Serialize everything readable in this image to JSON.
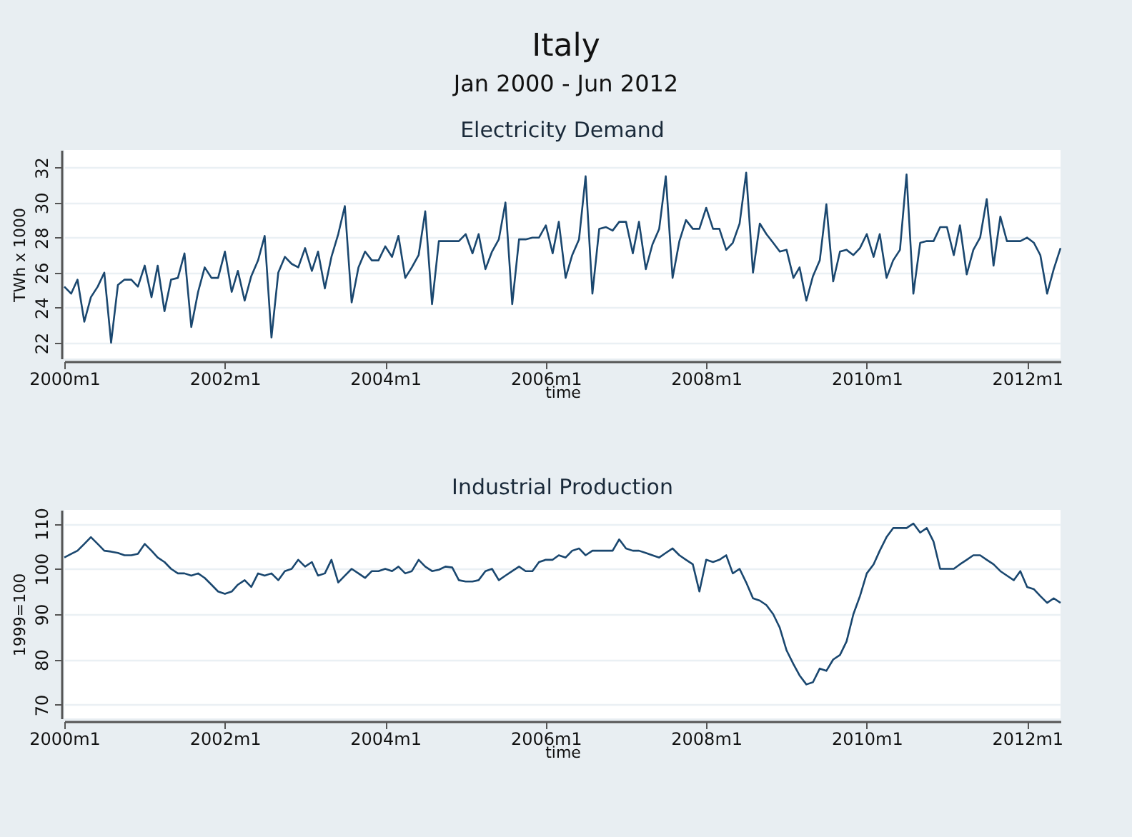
{
  "chart_data": [
    {
      "type": "other",
      "title": "Italy",
      "subtitle": "Jan 2000 - Jun 2012"
    },
    {
      "type": "line",
      "title": "Electricity Demand",
      "xlabel": "time",
      "x": [
        "2000-01",
        "2000-02",
        "2000-03",
        "2000-04",
        "2000-05",
        "2000-06",
        "2000-07",
        "2000-08",
        "2000-09",
        "2000-10",
        "2000-11",
        "2000-12",
        "2001-01",
        "2001-02",
        "2001-03",
        "2001-04",
        "2001-05",
        "2001-06",
        "2001-07",
        "2001-08",
        "2001-09",
        "2001-10",
        "2001-11",
        "2001-12",
        "2002-01",
        "2002-02",
        "2002-03",
        "2002-04",
        "2002-05",
        "2002-06",
        "2002-07",
        "2002-08",
        "2002-09",
        "2002-10",
        "2002-11",
        "2002-12",
        "2003-01",
        "2003-02",
        "2003-03",
        "2003-04",
        "2003-05",
        "2003-06",
        "2003-07",
        "2003-08",
        "2003-09",
        "2003-10",
        "2003-11",
        "2003-12",
        "2004-01",
        "2004-02",
        "2004-03",
        "2004-04",
        "2004-05",
        "2004-06",
        "2004-07",
        "2004-08",
        "2004-09",
        "2004-10",
        "2004-11",
        "2004-12",
        "2005-01",
        "2005-02",
        "2005-03",
        "2005-04",
        "2005-05",
        "2005-06",
        "2005-07",
        "2005-08",
        "2005-09",
        "2005-10",
        "2005-11",
        "2005-12",
        "2006-01",
        "2006-02",
        "2006-03",
        "2006-04",
        "2006-05",
        "2006-06",
        "2006-07",
        "2006-08",
        "2006-09",
        "2006-10",
        "2006-11",
        "2006-12",
        "2007-01",
        "2007-02",
        "2007-03",
        "2007-04",
        "2007-05",
        "2007-06",
        "2007-07",
        "2007-08",
        "2007-09",
        "2007-10",
        "2007-11",
        "2007-12",
        "2008-01",
        "2008-02",
        "2008-03",
        "2008-04",
        "2008-05",
        "2008-06",
        "2008-07",
        "2008-08",
        "2008-09",
        "2008-10",
        "2008-11",
        "2008-12",
        "2009-01",
        "2009-02",
        "2009-03",
        "2009-04",
        "2009-05",
        "2009-06",
        "2009-07",
        "2009-08",
        "2009-09",
        "2009-10",
        "2009-11",
        "2009-12",
        "2010-01",
        "2010-02",
        "2010-03",
        "2010-04",
        "2010-05",
        "2010-06",
        "2010-07",
        "2010-08",
        "2010-09",
        "2010-10",
        "2010-11",
        "2010-12",
        "2011-01",
        "2011-02",
        "2011-03",
        "2011-04",
        "2011-05",
        "2011-06",
        "2011-07",
        "2011-08",
        "2011-09",
        "2011-10",
        "2011-11",
        "2011-12",
        "2012-01",
        "2012-02",
        "2012-03",
        "2012-04",
        "2012-05",
        "2012-06"
      ],
      "ylabel": "TWh x 1000",
      "grid": "y",
      "marker": "none",
      "line_style": "solid",
      "xlim": [
        "2000-01",
        "2012-06"
      ],
      "ylim": [
        21.1,
        33
      ],
      "yticks": [
        22,
        24,
        26,
        28,
        30,
        32
      ],
      "xticks": [
        {
          "value": "2000-01",
          "label": "2000m1"
        },
        {
          "value": "2002-01",
          "label": "2002m1"
        },
        {
          "value": "2004-01",
          "label": "2004m1"
        },
        {
          "value": "2006-01",
          "label": "2006m1"
        },
        {
          "value": "2008-01",
          "label": "2008m1"
        },
        {
          "value": "2010-01",
          "label": "2010m1"
        },
        {
          "value": "2012-01",
          "label": "2012m1"
        }
      ],
      "series": [
        {
          "color": "#1a476f",
          "values": [
            25.2,
            24.8,
            25.6,
            23.2,
            24.6,
            25.2,
            26.0,
            22.0,
            25.3,
            25.6,
            25.6,
            25.2,
            26.4,
            24.6,
            26.4,
            23.8,
            25.6,
            25.7,
            27.1,
            22.9,
            24.9,
            26.3,
            25.7,
            25.7,
            27.2,
            24.9,
            26.1,
            24.4,
            25.8,
            26.7,
            28.1,
            22.3,
            26.0,
            26.9,
            26.5,
            26.3,
            27.4,
            26.1,
            27.2,
            25.1,
            26.9,
            28.2,
            29.8,
            24.3,
            26.3,
            27.2,
            26.7,
            26.7,
            27.5,
            26.9,
            28.1,
            25.7,
            26.3,
            27.0,
            29.5,
            24.2,
            27.8,
            27.8,
            27.8,
            27.8,
            28.2,
            27.1,
            28.2,
            26.2,
            27.2,
            27.9,
            30.0,
            24.2,
            27.9,
            27.9,
            28.0,
            28.0,
            28.7,
            27.1,
            28.9,
            25.7,
            27.0,
            27.9,
            31.5,
            24.8,
            28.5,
            28.6,
            28.4,
            28.9,
            28.9,
            27.1,
            28.9,
            26.2,
            27.6,
            28.5,
            31.5,
            25.7,
            27.8,
            29.0,
            28.5,
            28.5,
            29.7,
            28.5,
            28.5,
            27.3,
            27.7,
            28.8,
            31.7,
            26.0,
            28.8,
            28.2,
            27.7,
            27.2,
            27.3,
            25.7,
            26.3,
            24.4,
            25.8,
            26.7,
            29.9,
            25.5,
            27.2,
            27.3,
            27.0,
            27.4,
            28.2,
            26.9,
            28.2,
            25.7,
            26.7,
            27.3,
            31.6,
            24.8,
            27.7,
            27.8,
            27.8,
            28.6,
            28.6,
            27.0,
            28.7,
            25.9,
            27.3,
            28.0,
            30.2,
            26.4,
            29.2,
            27.8,
            27.8,
            27.8,
            28.0,
            27.7,
            27.0,
            24.8,
            26.2,
            27.4
          ]
        }
      ]
    },
    {
      "type": "line",
      "title": "Industrial Production",
      "xlabel": "time",
      "x": [
        "2000-01",
        "2000-02",
        "2000-03",
        "2000-04",
        "2000-05",
        "2000-06",
        "2000-07",
        "2000-08",
        "2000-09",
        "2000-10",
        "2000-11",
        "2000-12",
        "2001-01",
        "2001-02",
        "2001-03",
        "2001-04",
        "2001-05",
        "2001-06",
        "2001-07",
        "2001-08",
        "2001-09",
        "2001-10",
        "2001-11",
        "2001-12",
        "2002-01",
        "2002-02",
        "2002-03",
        "2002-04",
        "2002-05",
        "2002-06",
        "2002-07",
        "2002-08",
        "2002-09",
        "2002-10",
        "2002-11",
        "2002-12",
        "2003-01",
        "2003-02",
        "2003-03",
        "2003-04",
        "2003-05",
        "2003-06",
        "2003-07",
        "2003-08",
        "2003-09",
        "2003-10",
        "2003-11",
        "2003-12",
        "2004-01",
        "2004-02",
        "2004-03",
        "2004-04",
        "2004-05",
        "2004-06",
        "2004-07",
        "2004-08",
        "2004-09",
        "2004-10",
        "2004-11",
        "2004-12",
        "2005-01",
        "2005-02",
        "2005-03",
        "2005-04",
        "2005-05",
        "2005-06",
        "2005-07",
        "2005-08",
        "2005-09",
        "2005-10",
        "2005-11",
        "2005-12",
        "2006-01",
        "2006-02",
        "2006-03",
        "2006-04",
        "2006-05",
        "2006-06",
        "2006-07",
        "2006-08",
        "2006-09",
        "2006-10",
        "2006-11",
        "2006-12",
        "2007-01",
        "2007-02",
        "2007-03",
        "2007-04",
        "2007-05",
        "2007-06",
        "2007-07",
        "2007-08",
        "2007-09",
        "2007-10",
        "2007-11",
        "2007-12",
        "2008-01",
        "2008-02",
        "2008-03",
        "2008-04",
        "2008-05",
        "2008-06",
        "2008-07",
        "2008-08",
        "2008-09",
        "2008-10",
        "2008-11",
        "2008-12",
        "2009-01",
        "2009-02",
        "2009-03",
        "2009-04",
        "2009-05",
        "2009-06",
        "2009-07",
        "2009-08",
        "2009-09",
        "2009-10",
        "2009-11",
        "2009-12",
        "2010-01",
        "2010-02",
        "2010-03",
        "2010-04",
        "2010-05",
        "2010-06",
        "2010-07",
        "2010-08",
        "2010-09",
        "2010-10",
        "2010-11",
        "2010-12",
        "2011-01",
        "2011-02",
        "2011-03",
        "2011-04",
        "2011-05",
        "2011-06",
        "2011-07",
        "2011-08",
        "2011-09",
        "2011-10",
        "2011-11",
        "2011-12",
        "2012-01",
        "2012-02",
        "2012-03",
        "2012-04",
        "2012-05",
        "2012-06"
      ],
      "ylabel": "1999=100",
      "grid": "y",
      "marker": "none",
      "line_style": "solid",
      "xlim": [
        "2000-01",
        "2012-06"
      ],
      "ylim": [
        67,
        113
      ],
      "yticks": [
        70,
        80,
        90,
        100,
        110
      ],
      "xticks": [
        {
          "value": "2000-01",
          "label": "2000m1"
        },
        {
          "value": "2002-01",
          "label": "2002m1"
        },
        {
          "value": "2004-01",
          "label": "2004m1"
        },
        {
          "value": "2006-01",
          "label": "2006m1"
        },
        {
          "value": "2008-01",
          "label": "2008m1"
        },
        {
          "value": "2010-01",
          "label": "2010m1"
        },
        {
          "value": "2012-01",
          "label": "2012m1"
        }
      ],
      "series": [
        {
          "color": "#1a476f",
          "values": [
            102.5,
            103.3,
            104,
            105.5,
            107,
            105.5,
            104,
            103.8,
            103.5,
            103,
            103,
            103.3,
            105.5,
            104,
            102.5,
            101.5,
            100,
            99,
            99,
            98.5,
            99,
            98,
            96.5,
            95,
            94.5,
            95,
            96.5,
            97.5,
            96,
            99,
            98.5,
            99,
            97.5,
            99.5,
            100,
            102,
            100.5,
            101.5,
            98.5,
            99,
            102,
            97,
            98.5,
            100,
            99,
            98,
            99.5,
            99.5,
            100,
            99.5,
            100.5,
            99,
            99.5,
            102,
            100.5,
            99.5,
            99.8,
            100.5,
            100.3,
            97.5,
            97.2,
            97.2,
            97.5,
            99.5,
            100,
            97.5,
            98.5,
            99.5,
            100.5,
            99.5,
            99.5,
            101.5,
            102,
            102,
            103,
            102.5,
            104,
            104.5,
            103,
            104,
            104,
            104,
            104,
            106.5,
            104.5,
            104,
            104,
            103.5,
            103,
            102.5,
            103.5,
            104.5,
            103,
            102,
            101,
            95,
            102,
            101.5,
            102,
            103,
            99,
            100,
            97,
            93.5,
            93,
            92,
            90,
            87,
            82,
            79,
            76.5,
            74.5,
            75,
            78,
            77.5,
            80,
            81,
            84,
            90,
            94,
            99,
            101,
            104,
            107,
            109,
            109,
            109,
            110,
            108,
            109,
            106,
            100,
            100,
            100,
            101,
            102,
            103,
            103,
            102,
            101,
            99.5,
            98.5,
            97.5,
            99.5,
            96,
            95.5,
            94,
            92.5,
            93.5,
            92.5
          ]
        }
      ]
    }
  ]
}
